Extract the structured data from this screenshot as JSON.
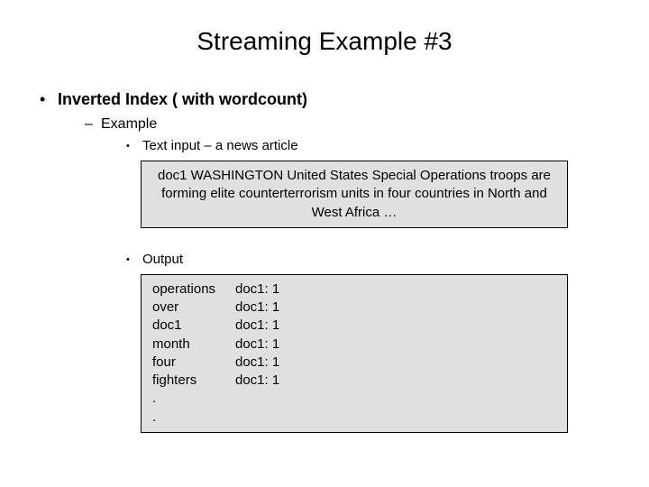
{
  "title": "Streaming Example #3",
  "bullets": {
    "l1": "Inverted Index ( with wordcount)",
    "l2": "Example",
    "l3a": "Text input – a news article",
    "l3b": "Output"
  },
  "input_box": "doc1    WASHINGTON United States Special Operations troops are forming elite counterterrorism units in four countries in North and West Africa …",
  "output": {
    "rows": [
      {
        "word": "operations",
        "val": "doc1: 1"
      },
      {
        "word": "over",
        "val": "doc1: 1"
      },
      {
        "word": "doc1",
        "val": "doc1: 1"
      },
      {
        "word": "month",
        "val": "doc1: 1"
      },
      {
        "word": "four",
        "val": "doc1: 1"
      },
      {
        "word": "fighters",
        "val": "doc1: 1"
      },
      {
        "word": ".",
        "val": ""
      },
      {
        "word": ".",
        "val": ""
      }
    ]
  },
  "colors": {
    "background": "#ffffff",
    "text": "#000000",
    "box_bg": "#e0e0e0",
    "box_border": "#000000"
  },
  "fonts": {
    "title_size": 28,
    "body_size": 16,
    "box_size": 15
  }
}
